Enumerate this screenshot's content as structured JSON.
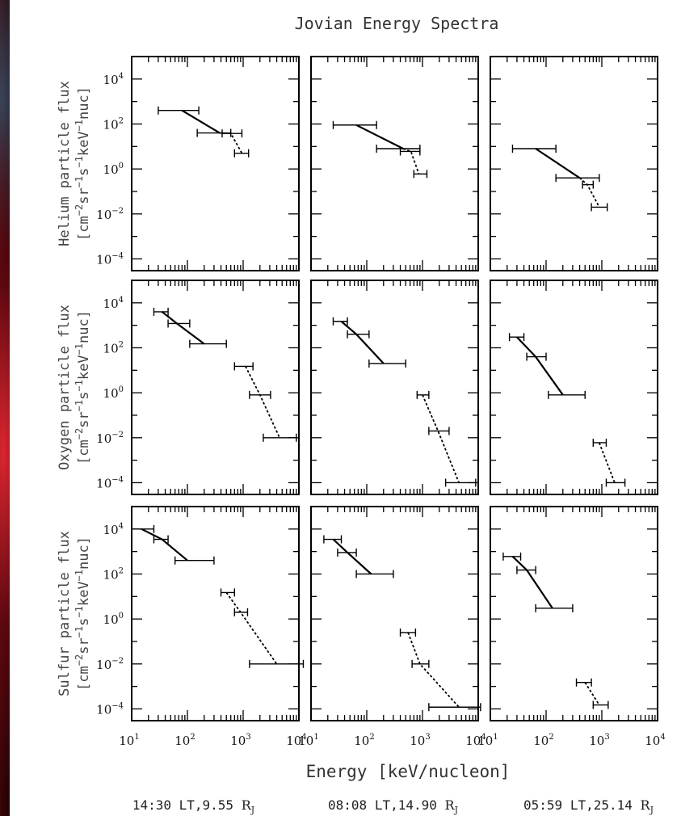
{
  "chart_data": {
    "type": "line",
    "title": "Jovian Energy Spectra",
    "xlabel": "Energy [keV/nucleon]",
    "xscale": "log",
    "yscale": "log",
    "xlim": [
      10,
      10000
    ],
    "ylim": [
      3e-05,
      100000
    ],
    "x_ticks": [
      "10^1",
      "10^2",
      "10^3",
      "10^4"
    ],
    "y_ticks": [
      "10^-4",
      "10^-2",
      "10^0",
      "10^2",
      "10^4"
    ],
    "rows": [
      {
        "species": "Helium",
        "ylabel_line1": "Helium particle flux",
        "ylabel_line2": "[cm^-2 sr^-1 s^-1 keV^-1 nuc]"
      },
      {
        "species": "Oxygen",
        "ylabel_line1": "Oxygen particle flux",
        "ylabel_line2": "[cm^-2 sr^-1 s^-1 keV^-1 nuc]"
      },
      {
        "species": "Sulfur",
        "ylabel_line1": "Sulfur particle flux",
        "ylabel_line2": "[cm^-2 sr^-1 s^-1 keV^-1 nuc]"
      }
    ],
    "columns": [
      {
        "label": "14:30 LT, 9.55 RJ",
        "time": "14:30 LT",
        "distance": "9.55",
        "unit": "RJ"
      },
      {
        "label": "08:08 LT, 14.90 RJ",
        "time": "08:08 LT",
        "distance": "14.90",
        "unit": "RJ"
      },
      {
        "label": "05:59 LT, 25.14 RJ",
        "time": "05:59 LT",
        "distance": "25.14",
        "unit": "RJ"
      }
    ],
    "panels": [
      {
        "row": 0,
        "col": 0,
        "points": [
          {
            "x": 80,
            "y": 400,
            "xerr": [
              30,
              160
            ]
          },
          {
            "x": 380,
            "y": 40,
            "xerr": [
              150,
              600
            ]
          },
          {
            "x": 600,
            "y": 38,
            "xerr": [
              420,
              950
            ]
          },
          {
            "x": 950,
            "y": 5,
            "xerr": [
              700,
              1250
            ]
          }
        ],
        "solid": [
          0,
          1
        ],
        "dashed": [
          1,
          2,
          3
        ]
      },
      {
        "row": 0,
        "col": 1,
        "points": [
          {
            "x": 65,
            "y": 90,
            "xerr": [
              25,
              150
            ]
          },
          {
            "x": 450,
            "y": 8,
            "xerr": [
              150,
              900
            ]
          },
          {
            "x": 620,
            "y": 6,
            "xerr": [
              400,
              900
            ]
          },
          {
            "x": 860,
            "y": 0.6,
            "xerr": [
              700,
              1200
            ]
          }
        ],
        "solid": [
          0,
          1
        ],
        "dashed": [
          1,
          2,
          3
        ]
      },
      {
        "row": 0,
        "col": 2,
        "points": [
          {
            "x": 65,
            "y": 8,
            "xerr": [
              25,
              150
            ]
          },
          {
            "x": 400,
            "y": 0.4,
            "xerr": [
              150,
              900
            ]
          },
          {
            "x": 550,
            "y": 0.2,
            "xerr": [
              450,
              700
            ]
          },
          {
            "x": 900,
            "y": 0.02,
            "xerr": [
              650,
              1250
            ]
          }
        ],
        "solid": [
          0,
          1
        ],
        "dashed": [
          1,
          2,
          3
        ]
      },
      {
        "row": 1,
        "col": 0,
        "points": [
          {
            "x": 35,
            "y": 4000,
            "xerr": [
              25,
              45
            ]
          },
          {
            "x": 65,
            "y": 1200,
            "xerr": [
              45,
              110
            ]
          },
          {
            "x": 200,
            "y": 150,
            "xerr": [
              110,
              500
            ]
          },
          {
            "x": 1100,
            "y": 15,
            "xerr": [
              700,
              1500
            ]
          },
          {
            "x": 2000,
            "y": 0.8,
            "xerr": [
              1300,
              3100
            ]
          },
          {
            "x": 4500,
            "y": 0.01,
            "xerr": [
              2300,
              9000
            ]
          }
        ],
        "solid": [
          0,
          1,
          2
        ],
        "dashed": [
          3,
          4,
          5
        ]
      },
      {
        "row": 1,
        "col": 1,
        "points": [
          {
            "x": 35,
            "y": 1500,
            "xerr": [
              25,
              45
            ]
          },
          {
            "x": 65,
            "y": 400,
            "xerr": [
              45,
              110
            ]
          },
          {
            "x": 200,
            "y": 20,
            "xerr": [
              110,
              500
            ]
          },
          {
            "x": 1000,
            "y": 0.8,
            "xerr": [
              800,
              1300
            ]
          },
          {
            "x": 1900,
            "y": 0.02,
            "xerr": [
              1300,
              3000
            ]
          },
          {
            "x": 4500,
            "y": 0.0001,
            "xerr": [
              2600,
              9000
            ]
          }
        ],
        "solid": [
          0,
          1,
          2
        ],
        "dashed": [
          3,
          4,
          5
        ]
      },
      {
        "row": 1,
        "col": 2,
        "points": [
          {
            "x": 30,
            "y": 300,
            "xerr": [
              22,
              40
            ]
          },
          {
            "x": 65,
            "y": 40,
            "xerr": [
              45,
              100
            ]
          },
          {
            "x": 200,
            "y": 0.8,
            "xerr": [
              110,
              500
            ]
          },
          {
            "x": 900,
            "y": 0.006,
            "xerr": [
              700,
              1200
            ]
          },
          {
            "x": 1700,
            "y": 0.0001,
            "xerr": [
              1200,
              2600
            ]
          }
        ],
        "solid": [
          0,
          1,
          2
        ],
        "dashed": [
          3,
          4
        ]
      },
      {
        "row": 2,
        "col": 0,
        "points": [
          {
            "x": 15,
            "y": 10000,
            "xerr": [
              10,
              25
            ]
          },
          {
            "x": 35,
            "y": 3500,
            "xerr": [
              25,
              45
            ]
          },
          {
            "x": 100,
            "y": 400,
            "xerr": [
              60,
              300
            ]
          },
          {
            "x": 500,
            "y": 15,
            "xerr": [
              400,
              700
            ]
          },
          {
            "x": 900,
            "y": 2,
            "xerr": [
              700,
              1200
            ]
          },
          {
            "x": 4000,
            "y": 0.01,
            "xerr": [
              1300,
              12000
            ]
          }
        ],
        "solid": [
          0,
          1,
          2
        ],
        "dashed": [
          3,
          4,
          5
        ]
      },
      {
        "row": 2,
        "col": 1,
        "points": [
          {
            "x": 25,
            "y": 3500,
            "xerr": [
              17,
              35
            ]
          },
          {
            "x": 45,
            "y": 900,
            "xerr": [
              30,
              65
            ]
          },
          {
            "x": 120,
            "y": 100,
            "xerr": [
              65,
              300
            ]
          },
          {
            "x": 550,
            "y": 0.25,
            "xerr": [
              400,
              750
            ]
          },
          {
            "x": 900,
            "y": 0.01,
            "xerr": [
              650,
              1300
            ]
          },
          {
            "x": 4500,
            "y": 0.00012,
            "xerr": [
              1300,
              11000
            ]
          }
        ],
        "solid": [
          0,
          1,
          2
        ],
        "dashed": [
          3,
          4,
          5
        ]
      },
      {
        "row": 2,
        "col": 2,
        "points": [
          {
            "x": 25,
            "y": 600,
            "xerr": [
              17,
              35
            ]
          },
          {
            "x": 45,
            "y": 150,
            "xerr": [
              30,
              65
            ]
          },
          {
            "x": 130,
            "y": 3,
            "xerr": [
              65,
              300
            ]
          },
          {
            "x": 500,
            "y": 0.0015,
            "xerr": [
              350,
              650
            ]
          },
          {
            "x": 900,
            "y": 0.00015,
            "xerr": [
              700,
              1300
            ]
          }
        ],
        "solid": [
          0,
          1,
          2
        ],
        "dashed": [
          3,
          4
        ]
      }
    ]
  }
}
